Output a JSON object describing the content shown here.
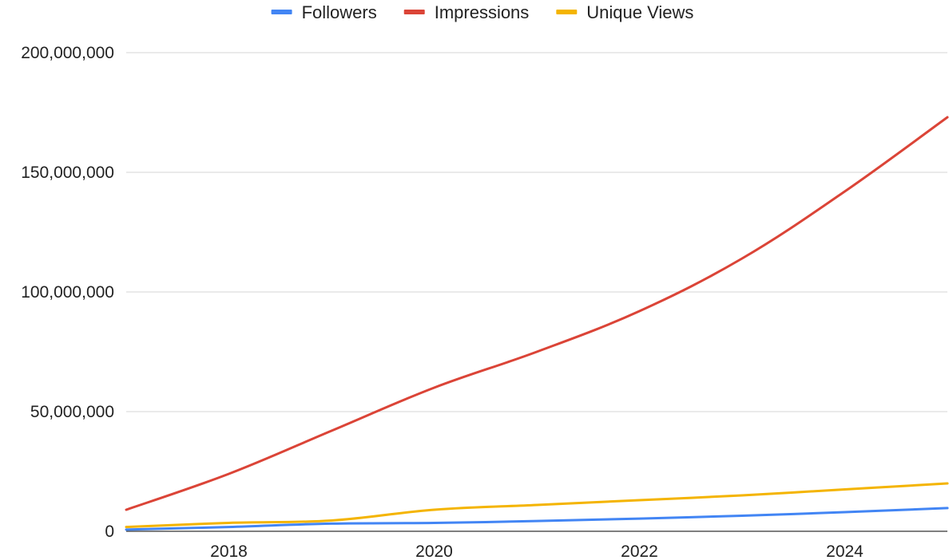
{
  "chart_data": {
    "type": "line",
    "title": "",
    "xlabel": "",
    "ylabel": "",
    "xlim": [
      2017,
      2025
    ],
    "ylim": [
      0,
      200000000
    ],
    "x_ticks": [
      2018,
      2020,
      2022,
      2024
    ],
    "y_ticks": [
      0,
      50000000,
      100000000,
      150000000,
      200000000
    ],
    "y_tick_labels": [
      "0",
      "50,000,000",
      "100,000,000",
      "150,000,000",
      "200,000,000"
    ],
    "grid": true,
    "legend_position": "top-center",
    "series": [
      {
        "name": "Followers",
        "color": "#4285F4",
        "x": [
          2017,
          2018,
          2019,
          2020,
          2021,
          2022,
          2023,
          2024,
          2025
        ],
        "values": [
          700000,
          1800000,
          3200000,
          3500000,
          4300000,
          5300000,
          6500000,
          8000000,
          9700000
        ]
      },
      {
        "name": "Impressions",
        "color": "#DB4437",
        "x": [
          2017,
          2018,
          2019,
          2020,
          2021,
          2022,
          2023,
          2024,
          2025
        ],
        "values": [
          9000000,
          24000000,
          42000000,
          60000000,
          75000000,
          92000000,
          114000000,
          142000000,
          173000000
        ]
      },
      {
        "name": "Unique Views",
        "color": "#F4B400",
        "x": [
          2017,
          2018,
          2019,
          2020,
          2021,
          2022,
          2023,
          2024,
          2025
        ],
        "values": [
          1800000,
          3500000,
          4500000,
          9000000,
          11000000,
          13000000,
          15000000,
          17500000,
          20000000
        ]
      }
    ]
  }
}
